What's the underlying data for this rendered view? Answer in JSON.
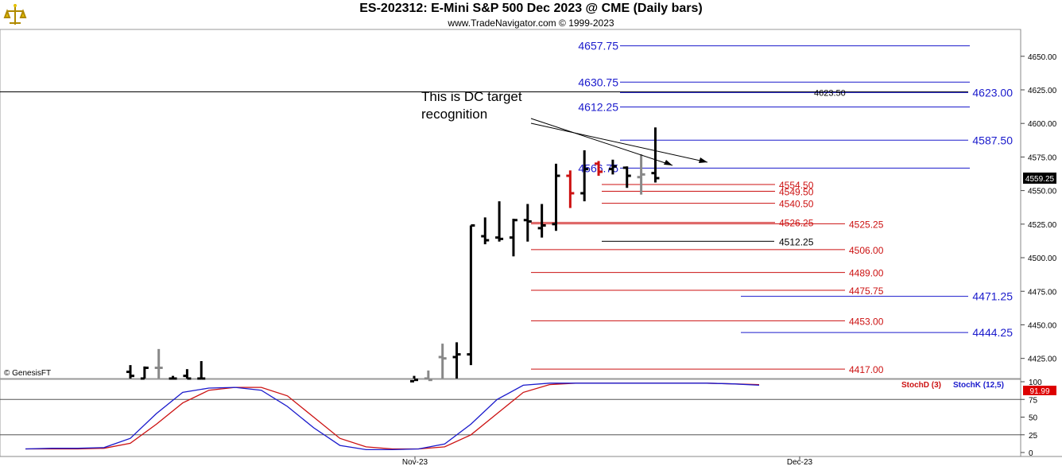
{
  "header": {
    "title": "ES-202312:  E-Mini S&P 500 Dec 2023 @ CME  (Daily bars)",
    "subtitle": "www.TradeNavigator.com © 1999-2023"
  },
  "watermark": "© GenesisFT",
  "annotation": {
    "line1": "This is DC target",
    "line2": "recognition"
  },
  "current_price_label": "4559.25",
  "colors": {
    "blue": "#1a1acc",
    "red": "#cc1111",
    "bar_black": "#000000",
    "bar_gray": "#888888",
    "bar_red": "#ff0000",
    "price_tag_bg": "#000000",
    "stoch_tag_bg": "#dd0000"
  },
  "chart_data": [
    {
      "type": "ohlc",
      "title": "ES-202312:  E-Mini S&P 500 Dec 2023 @ CME  (Daily bars)",
      "ylim": [
        4410,
        4670
      ],
      "y_ticks": [
        "4425.00",
        "4450.00",
        "4475.00",
        "4500.00",
        "4525.00",
        "4550.00",
        "4575.00",
        "4600.00",
        "4625.00",
        "4650.00"
      ],
      "x_ticks": [
        "Nov-23",
        "Dec-23"
      ],
      "bars": [
        {
          "i": 0,
          "h": 4420,
          "l": 4405,
          "o": 4415,
          "c": 4412,
          "color": "black"
        },
        {
          "i": 1,
          "h": 4419,
          "l": 4405,
          "o": 4410,
          "c": 4418,
          "color": "black"
        },
        {
          "i": 2,
          "h": 4432,
          "l": 4405,
          "o": 4418,
          "c": 4418,
          "color": "gray"
        },
        {
          "i": 3,
          "h": 4412,
          "l": 4405,
          "o": 4410,
          "c": 4410,
          "color": "black"
        },
        {
          "i": 4,
          "h": 4417,
          "l": 4405,
          "o": 4412,
          "c": 4410,
          "color": "black"
        },
        {
          "i": 5,
          "h": 4423,
          "l": 4405,
          "o": 4410,
          "c": 4410,
          "color": "black"
        },
        {
          "i": 20,
          "h": 4412,
          "l": 4405,
          "o": 4408,
          "c": 4409,
          "color": "black"
        },
        {
          "i": 21,
          "h": 4416,
          "l": 4405,
          "o": 4410,
          "c": 4409,
          "color": "gray"
        },
        {
          "i": 22,
          "h": 4436,
          "l": 4410,
          "o": 4426,
          "c": 4425,
          "color": "gray"
        },
        {
          "i": 23,
          "h": 4437,
          "l": 4410,
          "o": 4426,
          "c": 4428,
          "color": "black"
        },
        {
          "i": 24,
          "h": 4524,
          "l": 4420,
          "o": 4428,
          "c": 4524,
          "color": "black"
        },
        {
          "i": 25,
          "h": 4530,
          "l": 4510,
          "o": 4516,
          "c": 4513,
          "color": "black"
        },
        {
          "i": 26,
          "h": 4542,
          "l": 4512,
          "o": 4515,
          "c": 4514,
          "color": "black"
        },
        {
          "i": 27,
          "h": 4529,
          "l": 4501,
          "o": 4515,
          "c": 4528,
          "color": "black"
        },
        {
          "i": 28,
          "h": 4540,
          "l": 4512,
          "o": 4528,
          "c": 4527,
          "color": "black"
        },
        {
          "i": 29,
          "h": 4540,
          "l": 4515,
          "o": 4522,
          "c": 4524,
          "color": "black"
        },
        {
          "i": 30,
          "h": 4570,
          "l": 4520,
          "o": 4525,
          "c": 4561,
          "color": "black"
        },
        {
          "i": 31,
          "h": 4565,
          "l": 4537,
          "o": 4561,
          "c": 4548,
          "color": "red"
        },
        {
          "i": 32,
          "h": 4580,
          "l": 4542,
          "o": 4548,
          "c": 4566,
          "color": "black"
        },
        {
          "i": 33,
          "h": 4572,
          "l": 4561,
          "o": 4570,
          "c": 4564,
          "color": "red"
        },
        {
          "i": 34,
          "h": 4573,
          "l": 4562,
          "o": 4566,
          "c": 4568,
          "color": "black"
        },
        {
          "i": 35,
          "h": 4568,
          "l": 4552,
          "o": 4567,
          "c": 4561,
          "color": "black"
        },
        {
          "i": 36,
          "h": 4577,
          "l": 4547,
          "o": 4560,
          "c": 4562,
          "color": "gray"
        },
        {
          "i": 37,
          "h": 4597,
          "l": 4556,
          "o": 4563,
          "c": 4559.25,
          "color": "black"
        }
      ],
      "levels": [
        {
          "price": 4657.75,
          "label": "4657.75",
          "color": "blue",
          "side": "left"
        },
        {
          "price": 4630.75,
          "label": "4630.75",
          "color": "blue",
          "side": "left"
        },
        {
          "price": 4623.0,
          "label": "4623.00",
          "color": "blue",
          "side": "right"
        },
        {
          "price": 4623.5,
          "label": "4623.50",
          "color": "black",
          "side": "mid"
        },
        {
          "price": 4612.25,
          "label": "4612.25",
          "color": "blue",
          "side": "left"
        },
        {
          "price": 4587.5,
          "label": "4587.50",
          "color": "blue",
          "side": "right"
        },
        {
          "price": 4566.75,
          "label": "4566.75",
          "color": "blue",
          "side": "left"
        },
        {
          "price": 4554.5,
          "label": "4554.50",
          "color": "red",
          "side": "mid"
        },
        {
          "price": 4549.5,
          "label": "4549.50",
          "color": "red",
          "side": "mid"
        },
        {
          "price": 4540.5,
          "label": "4540.50",
          "color": "red",
          "side": "mid"
        },
        {
          "price": 4526.25,
          "label": "4526.25",
          "color": "red",
          "side": "mid"
        },
        {
          "price": 4525.25,
          "label": "4525.25",
          "color": "red",
          "side": "right2"
        },
        {
          "price": 4512.25,
          "label": "4512.25",
          "color": "black",
          "side": "mid"
        },
        {
          "price": 4506.0,
          "label": "4506.00",
          "color": "red",
          "side": "right2"
        },
        {
          "price": 4489.0,
          "label": "4489.00",
          "color": "red",
          "side": "right2"
        },
        {
          "price": 4475.75,
          "label": "4475.75",
          "color": "red",
          "side": "right2"
        },
        {
          "price": 4471.25,
          "label": "4471.25",
          "color": "blue",
          "side": "right"
        },
        {
          "price": 4453.0,
          "label": "4453.00",
          "color": "red",
          "side": "right2"
        },
        {
          "price": 4444.25,
          "label": "4444.25",
          "color": "blue",
          "side": "right"
        },
        {
          "price": 4417.0,
          "label": "4417.00",
          "color": "red",
          "side": "right2"
        }
      ]
    },
    {
      "type": "line",
      "ylim": [
        0,
        100
      ],
      "y_ticks": [
        "0",
        "25",
        "50",
        "75",
        "100"
      ],
      "series": [
        {
          "name": "StochD (3)",
          "color": "red",
          "values": [
            5,
            5,
            5,
            6,
            13,
            40,
            70,
            88,
            92,
            92,
            80,
            50,
            20,
            8,
            5,
            5,
            8,
            25,
            55,
            85,
            96,
            98,
            98,
            98,
            98,
            98,
            98,
            97,
            96
          ]
        },
        {
          "name": "StochK (12,5)",
          "color": "blue",
          "values": [
            5,
            6,
            6,
            7,
            20,
            55,
            85,
            91,
            92,
            88,
            65,
            35,
            10,
            4,
            4,
            5,
            12,
            40,
            75,
            95,
            98,
            98,
            98,
            98,
            98,
            98,
            98,
            97,
            95
          ]
        }
      ],
      "current_label": "91.99"
    }
  ]
}
